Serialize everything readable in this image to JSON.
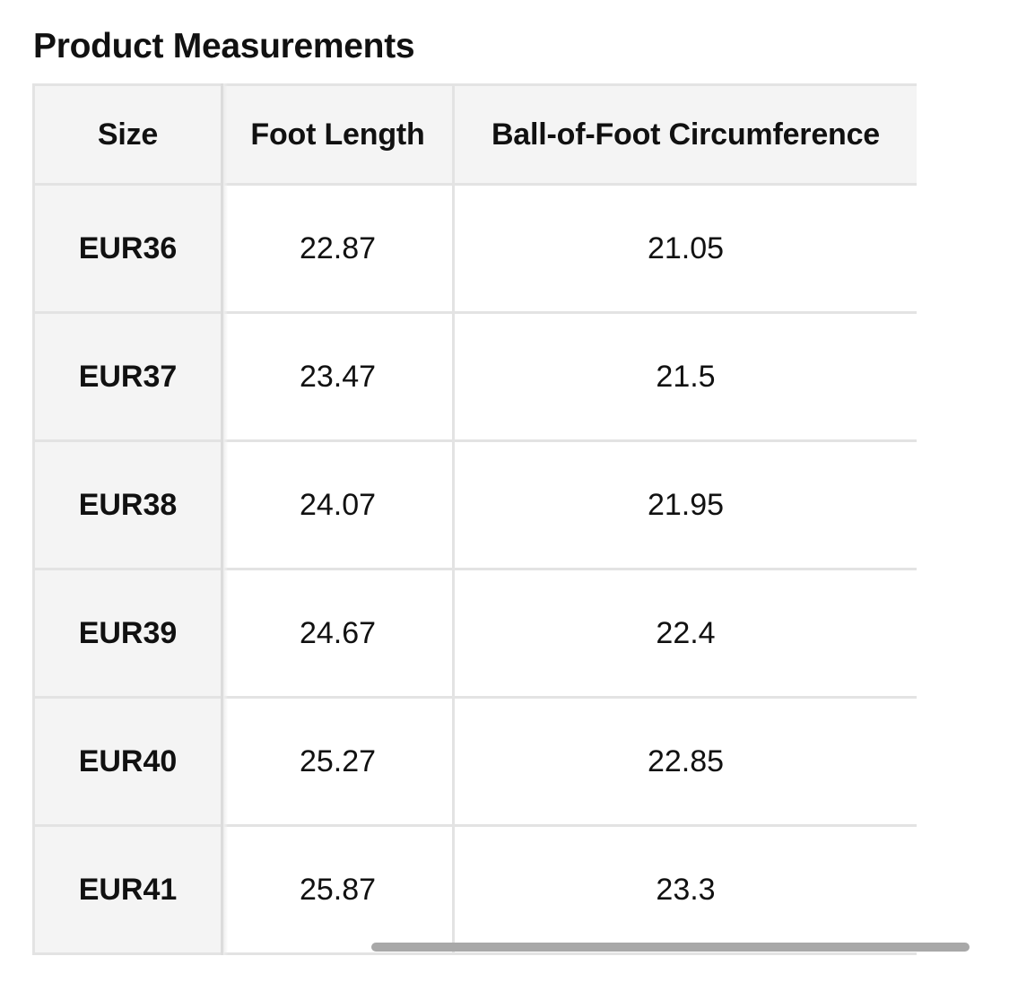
{
  "title": "Product Measurements",
  "table": {
    "headers": [
      "Size",
      "Foot Length",
      "Ball-of-Foot Circumference"
    ],
    "rows": [
      {
        "size": "EUR36",
        "foot_length": "22.87",
        "ball_circumference": "21.05"
      },
      {
        "size": "EUR37",
        "foot_length": "23.47",
        "ball_circumference": "21.5"
      },
      {
        "size": "EUR38",
        "foot_length": "24.07",
        "ball_circumference": "21.95"
      },
      {
        "size": "EUR39",
        "foot_length": "24.67",
        "ball_circumference": "22.4"
      },
      {
        "size": "EUR40",
        "foot_length": "25.27",
        "ball_circumference": "22.85"
      },
      {
        "size": "EUR41",
        "foot_length": "25.87",
        "ball_circumference": "23.3"
      }
    ]
  },
  "colors": {
    "text": "#111111",
    "header_background": "#f4f4f4",
    "border": "#e3e3e3",
    "scrollbar": "#a8a8a8"
  }
}
